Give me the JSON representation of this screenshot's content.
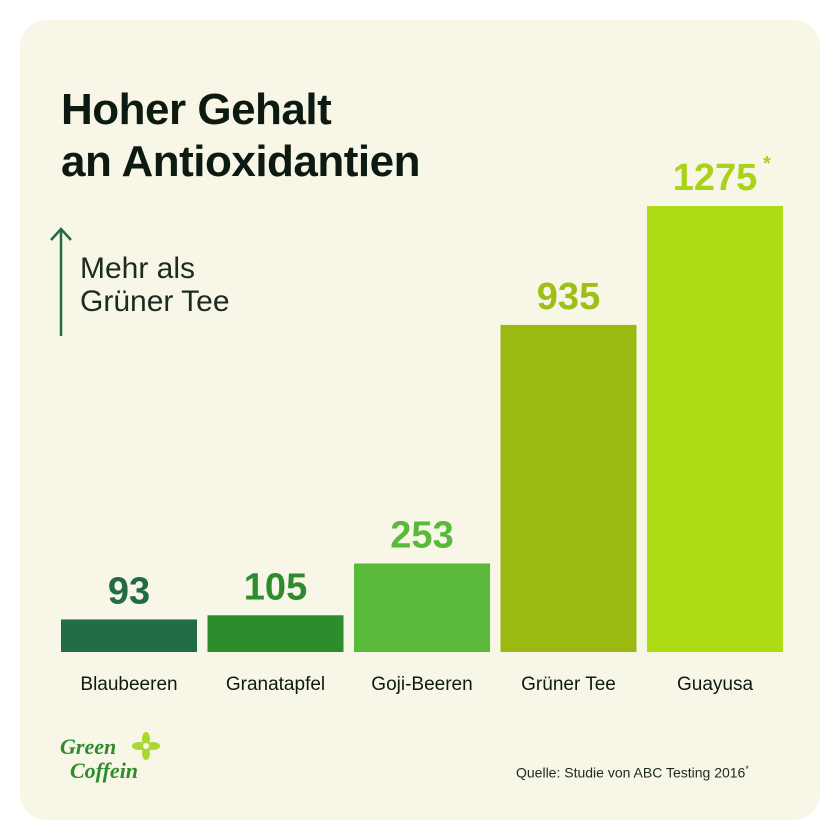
{
  "title": {
    "line1": "Hoher Gehalt",
    "line2": "an Antioxidantien"
  },
  "note": {
    "line1": "Mehr als",
    "line2": "Grüner Tee"
  },
  "source": {
    "text": "Quelle: Studie von ABC Testing 2016",
    "mark": "*"
  },
  "logo": {
    "line1": "Green",
    "line2": "Coffein",
    "icon": "flower-icon",
    "color": "#2e8b2e",
    "accent": "#a8d832"
  },
  "colors": {
    "card_background": "#f8f6e6",
    "value_text_dark": "#236b45",
    "value_text_mid": "#2e8b2e",
    "value_text_light": "#9dbf16",
    "value_text_bright": "#a9d318"
  },
  "chart_data": {
    "type": "bar",
    "title": "Hoher Gehalt an Antioxidantien",
    "categories": [
      "Blaubeeren",
      "Granatapfel",
      "Goji-Beeren",
      "Grüner Tee",
      "Guayusa"
    ],
    "values": [
      93,
      105,
      253,
      935,
      1275
    ],
    "value_labels": [
      "93",
      "105",
      "253",
      "935",
      "1275"
    ],
    "value_marks": [
      "",
      "",
      "",
      "",
      "*"
    ],
    "bar_colors": [
      "#226c48",
      "#2b8d2b",
      "#58b93a",
      "#9aba12",
      "#aedc12"
    ],
    "label_colors": [
      "#236b45",
      "#2e8b2e",
      "#58b93a",
      "#9dbf16",
      "#a9d318"
    ],
    "grid": false,
    "legend": "none"
  }
}
